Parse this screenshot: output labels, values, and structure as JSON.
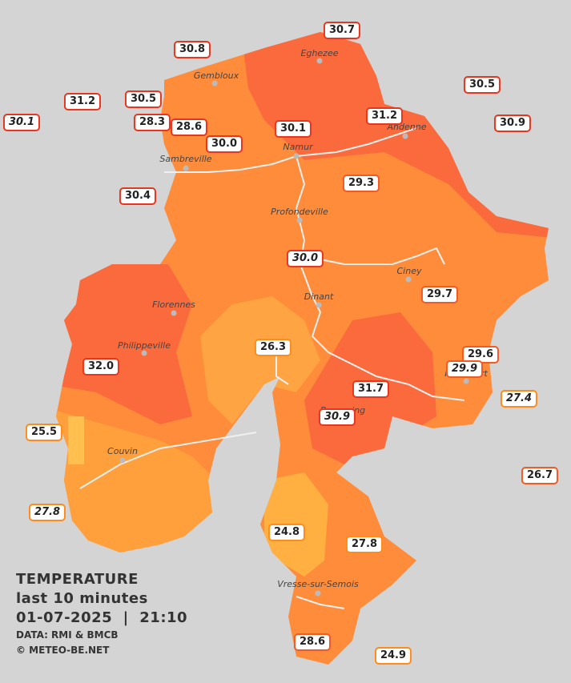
{
  "legend": {
    "title": "TEMPERATURE",
    "subtitle": "last 10 minutes",
    "datetime": "01-07-2025  |  21:10",
    "source": "DATA: RMI & BMCB",
    "copyright": "© METEO-BE.NET"
  },
  "cities": [
    {
      "name": "Eghezee"
    },
    {
      "name": "Gembloux"
    },
    {
      "name": "Andenne"
    },
    {
      "name": "Namur"
    },
    {
      "name": "Sambreville"
    },
    {
      "name": "Profondeville"
    },
    {
      "name": "Ciney"
    },
    {
      "name": "Dinant"
    },
    {
      "name": "Florennes"
    },
    {
      "name": "Philippeville"
    },
    {
      "name": "Rochefort"
    },
    {
      "name": "Beauraing"
    },
    {
      "name": "Couvin"
    },
    {
      "name": "Vresse-sur-Semois"
    }
  ],
  "stations": [
    {
      "value": "30.7"
    },
    {
      "value": "30.8"
    },
    {
      "value": "30.5"
    },
    {
      "value": "31.2"
    },
    {
      "value": "30.5"
    },
    {
      "value": "31.2"
    },
    {
      "value": "30.1"
    },
    {
      "value": "28.3"
    },
    {
      "value": "28.6"
    },
    {
      "value": "30.9"
    },
    {
      "value": "30.1"
    },
    {
      "value": "30.0"
    },
    {
      "value": "29.3"
    },
    {
      "value": "30.4"
    },
    {
      "value": "30.0"
    },
    {
      "value": "29.7"
    },
    {
      "value": "26.3"
    },
    {
      "value": "29.6"
    },
    {
      "value": "29.9"
    },
    {
      "value": "32.0"
    },
    {
      "value": "31.7"
    },
    {
      "value": "27.4"
    },
    {
      "value": "30.9"
    },
    {
      "value": "25.5"
    },
    {
      "value": "26.7"
    },
    {
      "value": "27.8"
    },
    {
      "value": "24.8"
    },
    {
      "value": "27.8"
    },
    {
      "value": "28.6"
    },
    {
      "value": "24.9"
    }
  ]
}
